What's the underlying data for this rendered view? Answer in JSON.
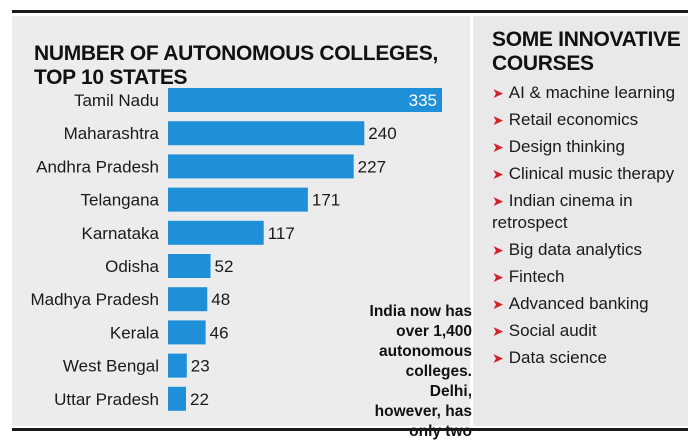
{
  "chart_data": {
    "type": "bar",
    "orientation": "horizontal",
    "title": "NUMBER OF AUTONOMOUS COLLEGES, TOP 10 STATES",
    "categories": [
      "Tamil Nadu",
      "Maharashtra",
      "Andhra Pradesh",
      "Telangana",
      "Karnataka",
      "Odisha",
      "Madhya Pradesh",
      "Kerala",
      "West Bengal",
      "Uttar Pradesh"
    ],
    "values": [
      335,
      240,
      227,
      171,
      117,
      52,
      48,
      46,
      23,
      22
    ],
    "value_labels": [
      "335",
      "240",
      "227",
      "171",
      "117",
      "52",
      "48",
      "46",
      "23",
      "22"
    ],
    "xlim": [
      0,
      335
    ],
    "bar_color": "#1f8fd8",
    "grid": false
  },
  "annotation": "India now has over 1,400 autonomous colleges. Delhi, however, has only two",
  "courses": {
    "title": "SOME INNOVATIVE COURSES",
    "bullet_icon": "red-arrow-icon",
    "bullet_glyph": "➤",
    "accent_color": "#d4202a",
    "items": [
      "AI & machine learning",
      "Retail economics",
      "Design thinking",
      "Clinical music therapy",
      "Indian cinema in retrospect",
      "Big data analytics",
      "Fintech",
      "Advanced banking",
      "Social audit",
      "Data science"
    ]
  }
}
